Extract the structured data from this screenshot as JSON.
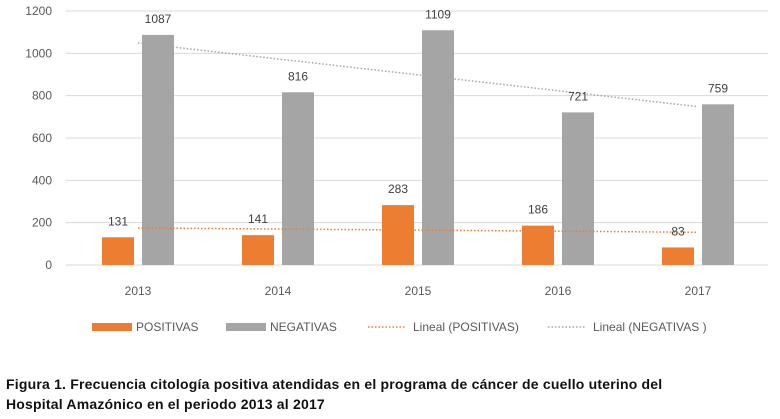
{
  "chart_data": {
    "type": "bar",
    "title": "",
    "xlabel": "",
    "ylabel": "",
    "categories": [
      "2013",
      "2014",
      "2015",
      "2016",
      "2017"
    ],
    "ylim": [
      0,
      1200
    ],
    "yticks": [
      0,
      200,
      400,
      600,
      800,
      1000,
      1200
    ],
    "grid": true,
    "legend_position": "bottom",
    "series": [
      {
        "name": "POSITIVAS",
        "values": [
          131,
          141,
          283,
          186,
          83
        ],
        "color": "#ED7D31"
      },
      {
        "name": "NEGATIVAS",
        "values": [
          1087,
          816,
          1109,
          721,
          759
        ],
        "color": "#A5A5A5"
      }
    ],
    "trendlines": [
      {
        "name": "Lineal (POSITIVAS)",
        "of": "POSITIVAS",
        "type": "linear",
        "color": "#ED7D31"
      },
      {
        "name": "Lineal (NEGATIVAS )",
        "of": "NEGATIVAS",
        "type": "linear",
        "color": "#A5A5A5"
      }
    ]
  },
  "caption": {
    "line1": "Figura 1.  Frecuencia citología positiva atendidas en el programa de cáncer de cuello uterino del",
    "line2": "Hospital Amazónico en el periodo 2013 al 2017"
  }
}
